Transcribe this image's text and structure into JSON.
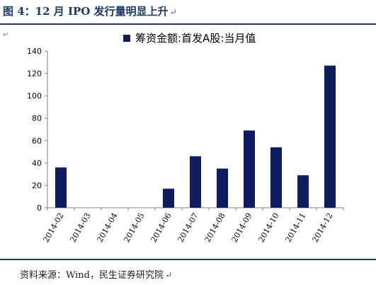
{
  "figure": {
    "title": "图 4：12 月 IPO 发行量明显上升",
    "source": "资料来源：Wind，民生证券研究院",
    "para_mark": "↵"
  },
  "colors": {
    "bar": "#0f1d5e",
    "title": "#1f3864",
    "axis": "#808080"
  },
  "chart_data": {
    "type": "bar",
    "categories": [
      "2014-02",
      "2014-03",
      "2014-04",
      "2014-05",
      "2014-06",
      "2014-07",
      "2014-08",
      "2014-09",
      "2014-10",
      "2014-11",
      "2014-12"
    ],
    "series": [
      {
        "name": "筹资金额:首发A股:当月值",
        "values": [
          36,
          0,
          0,
          0,
          17,
          46,
          35,
          69,
          54,
          29,
          127
        ]
      }
    ],
    "yticks": [
      0,
      20,
      40,
      60,
      80,
      100,
      120,
      140
    ],
    "ylim": [
      0,
      140
    ],
    "grid": false,
    "legend": "top-center",
    "title": "",
    "xlabel": "",
    "ylabel": ""
  }
}
